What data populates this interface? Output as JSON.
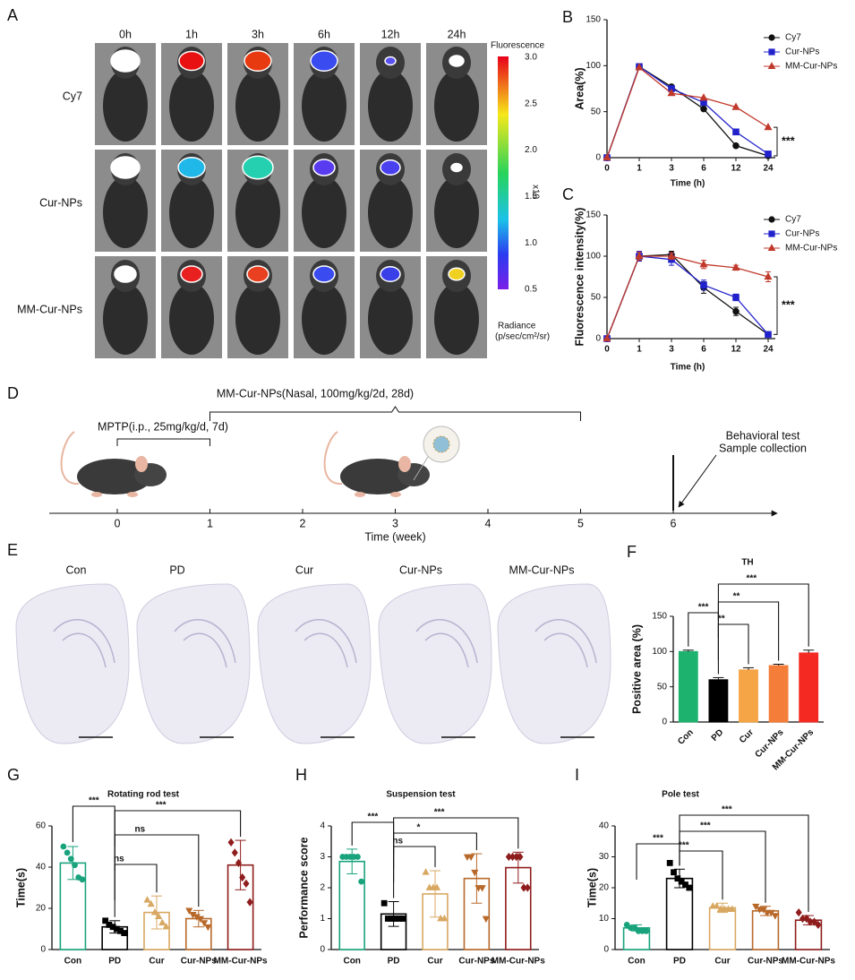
{
  "panel_a": {
    "panel": "A",
    "columns": [
      "0h",
      "1h",
      "3h",
      "6h",
      "12h",
      "24h"
    ],
    "rows": [
      "Cy7",
      "Cur-NPs",
      "MM-Cur-NPs"
    ],
    "colorbar": {
      "title": "Fluorescence",
      "ticks": [
        "3.0",
        "2.5",
        "2.0",
        "1.5",
        "1.0",
        "0.5"
      ],
      "multiplier": "x10",
      "unit_title": "Radiance",
      "unit": "(p/sec/cm²/sr)"
    }
  },
  "panel_d": {
    "panel": "D",
    "treatment": "MM-Cur-NPs(Nasal, 100mg/kg/2d, 28d)",
    "induction": "MPTP(i.p., 25mg/kg/d, 7d)",
    "endpoint": [
      "Behavioral test",
      "Sample collection"
    ],
    "ticks": [
      "0",
      "1",
      "2",
      "3",
      "4",
      "5",
      "6"
    ],
    "xlabel": "Time (week)"
  },
  "panel_e": {
    "panel": "E",
    "labels": [
      "Con",
      "PD",
      "Cur",
      "Cur-NPs",
      "MM-Cur-NPs"
    ]
  },
  "chart_data": [
    {
      "type": "line",
      "panel": "B",
      "ylabel": "Area(%)",
      "xlabel": "Time (h)",
      "categories": [
        "0",
        "1",
        "3",
        "6",
        "12",
        "24"
      ],
      "ylim": [
        0,
        150
      ],
      "yticks": [
        0,
        50,
        100,
        150
      ],
      "legend": "upper right",
      "annotation": "***",
      "series": [
        {
          "name": "Cy7",
          "color": "#111111",
          "marker": "circle",
          "values": [
            0,
            99,
            77,
            53,
            13,
            2
          ]
        },
        {
          "name": "Cur-NPs",
          "color": "#2222cc",
          "marker": "square",
          "values": [
            0,
            99,
            75,
            60,
            28,
            4
          ]
        },
        {
          "name": "MM-Cur-NPs",
          "color": "#c0392b",
          "marker": "triangle",
          "values": [
            0,
            98,
            70,
            65,
            55,
            33
          ]
        }
      ]
    },
    {
      "type": "line",
      "panel": "C",
      "ylabel": "Fluorescence intensity(%)",
      "xlabel": "Time (h)",
      "categories": [
        "0",
        "1",
        "3",
        "6",
        "12",
        "24"
      ],
      "ylim": [
        0,
        150
      ],
      "yticks": [
        0,
        50,
        100,
        150
      ],
      "legend": "upper right",
      "annotation": "***",
      "series": [
        {
          "name": "Cy7",
          "color": "#111111",
          "marker": "circle",
          "values": [
            0,
            100,
            102,
            62,
            33,
            5
          ],
          "errors": [
            0,
            5,
            4,
            7,
            5,
            1
          ]
        },
        {
          "name": "Cur-NPs",
          "color": "#2222cc",
          "marker": "square",
          "values": [
            0,
            100,
            96,
            65,
            50,
            5
          ],
          "errors": [
            0,
            6,
            7,
            6,
            4,
            1
          ]
        },
        {
          "name": "MM-Cur-NPs",
          "color": "#c0392b",
          "marker": "triangle",
          "values": [
            0,
            100,
            100,
            90,
            86,
            75
          ],
          "errors": [
            0,
            5,
            4,
            5,
            3,
            6
          ]
        }
      ]
    },
    {
      "type": "bar",
      "panel": "F",
      "title": "TH",
      "ylabel": "Positive area (%)",
      "filled": true,
      "categories": [
        "Con",
        "PD",
        "Cur",
        "Cur-NPs",
        "MM-Cur-NPs"
      ],
      "values": [
        100,
        60,
        74,
        80,
        98
      ],
      "errors": [
        2,
        3,
        3,
        2,
        4
      ],
      "colors": [
        "#1db36e",
        "#000000",
        "#f5a545",
        "#f47d3a",
        "#f42a22"
      ],
      "ylim": [
        0,
        150
      ],
      "yticks": [
        0,
        50,
        100,
        150
      ],
      "annotations": [
        "***",
        "**",
        "**",
        "***"
      ]
    },
    {
      "type": "bar",
      "panel": "G",
      "title": "Rotating rod test",
      "ylabel": "Time(s)",
      "filled": false,
      "categories": [
        "Con",
        "PD",
        "Cur",
        "Cur-NPs",
        "MM-Cur-NPs"
      ],
      "values": [
        42,
        11,
        18,
        15,
        41
      ],
      "errors": [
        8,
        3,
        8,
        4,
        12
      ],
      "points": [
        [
          50,
          47,
          44,
          41,
          35,
          34
        ],
        [
          14,
          12,
          11,
          10,
          9,
          8
        ],
        [
          24,
          22,
          18,
          16,
          13,
          11
        ],
        [
          19,
          17,
          16,
          15,
          13,
          11
        ],
        [
          52,
          47,
          42,
          35,
          32,
          23
        ]
      ],
      "colors": [
        "#18a37d",
        "#000000",
        "#d8a862",
        "#b8692a",
        "#8f1d1d"
      ],
      "ylim": [
        0,
        60
      ],
      "yticks": [
        0,
        20,
        40,
        60
      ],
      "annotations": [
        "***",
        "ns",
        "ns",
        "***"
      ]
    },
    {
      "type": "bar",
      "panel": "H",
      "title": "Suspension test",
      "ylabel": "Performance score",
      "filled": false,
      "categories": [
        "Con",
        "PD",
        "Cur",
        "Cur-NPs",
        "MM-Cur-NPs"
      ],
      "values": [
        2.85,
        1.15,
        1.8,
        2.3,
        2.65
      ],
      "errors": [
        0.4,
        0.4,
        0.75,
        0.8,
        0.5
      ],
      "points": [
        [
          3,
          3,
          3,
          3,
          3,
          2.2
        ],
        [
          1.5,
          1,
          1,
          1,
          1,
          1
        ],
        [
          2.5,
          2,
          2,
          2,
          1,
          1
        ],
        [
          3,
          3,
          2.5,
          2,
          2,
          1
        ],
        [
          3,
          3,
          3,
          3,
          2,
          2
        ]
      ],
      "colors": [
        "#18a37d",
        "#000000",
        "#d8a862",
        "#b8692a",
        "#8f1d1d"
      ],
      "ylim": [
        0,
        4
      ],
      "yticks": [
        0,
        1,
        2,
        3,
        4
      ],
      "annotations": [
        "***",
        "ns",
        "*",
        "***"
      ]
    },
    {
      "type": "bar",
      "panel": "I",
      "title": "Pole test",
      "ylabel": "Time(s)",
      "filled": false,
      "categories": [
        "Con",
        "PD",
        "Cur",
        "Cur-NPs",
        "MM-Cur-NPs"
      ],
      "values": [
        7,
        23,
        13.5,
        12.5,
        9.5
      ],
      "errors": [
        1,
        3,
        1.5,
        1.5,
        1.5
      ],
      "points": [
        [
          8,
          7,
          7,
          6,
          6,
          6
        ],
        [
          28,
          25,
          23,
          22,
          21,
          20
        ],
        [
          14,
          14,
          13,
          13,
          13,
          13
        ],
        [
          14,
          13,
          13,
          12,
          12,
          11
        ],
        [
          12,
          10,
          10,
          9,
          9,
          8
        ]
      ],
      "colors": [
        "#18a37d",
        "#000000",
        "#d8a862",
        "#b8692a",
        "#8f1d1d"
      ],
      "ylim": [
        0,
        40
      ],
      "yticks": [
        0,
        10,
        20,
        30,
        40
      ],
      "annotations": [
        "***",
        "***",
        "***",
        "***"
      ]
    }
  ]
}
